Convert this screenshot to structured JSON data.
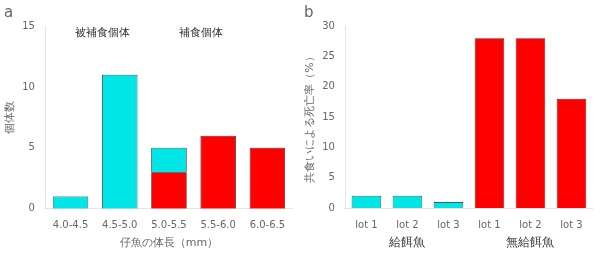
{
  "chart_data": [
    {
      "type": "bar",
      "title": "a",
      "stacked": true,
      "categories": [
        "4.0-4.5",
        "4.5-5.0",
        "5.0-5.5",
        "5.5-6.0",
        "6.0-6.5"
      ],
      "series": [
        {
          "color": "#ff0000",
          "values": [
            0,
            0,
            3,
            6,
            5
          ]
        },
        {
          "color": "#00e5e5",
          "values": [
            1,
            11,
            2,
            0,
            0
          ]
        }
      ],
      "xlabel": "仔魚の体長（mm）",
      "ylabel": "個体数",
      "ylim": [
        0,
        15
      ],
      "yticks": [
        0,
        5,
        10,
        15
      ],
      "annotations": [
        "被補食個体",
        "補食個体"
      ],
      "grid": false
    },
    {
      "type": "bar",
      "title": "b",
      "categories": [
        "lot 1",
        "lot 2",
        "lot 3",
        "lot 1",
        "lot 2",
        "lot 3"
      ],
      "values": [
        2,
        2,
        1,
        28,
        28,
        18
      ],
      "colors": [
        "#00e5e5",
        "#00e5e5",
        "#00e5e5",
        "#ff0000",
        "#ff0000",
        "#ff0000"
      ],
      "ylabel": "共食いによる死亡率（%）",
      "ylim": [
        0,
        30
      ],
      "yticks": [
        0,
        5,
        10,
        15,
        20,
        25,
        30
      ],
      "group_labels": [
        "給餌魚",
        "無給餌魚"
      ],
      "grid": false
    }
  ]
}
